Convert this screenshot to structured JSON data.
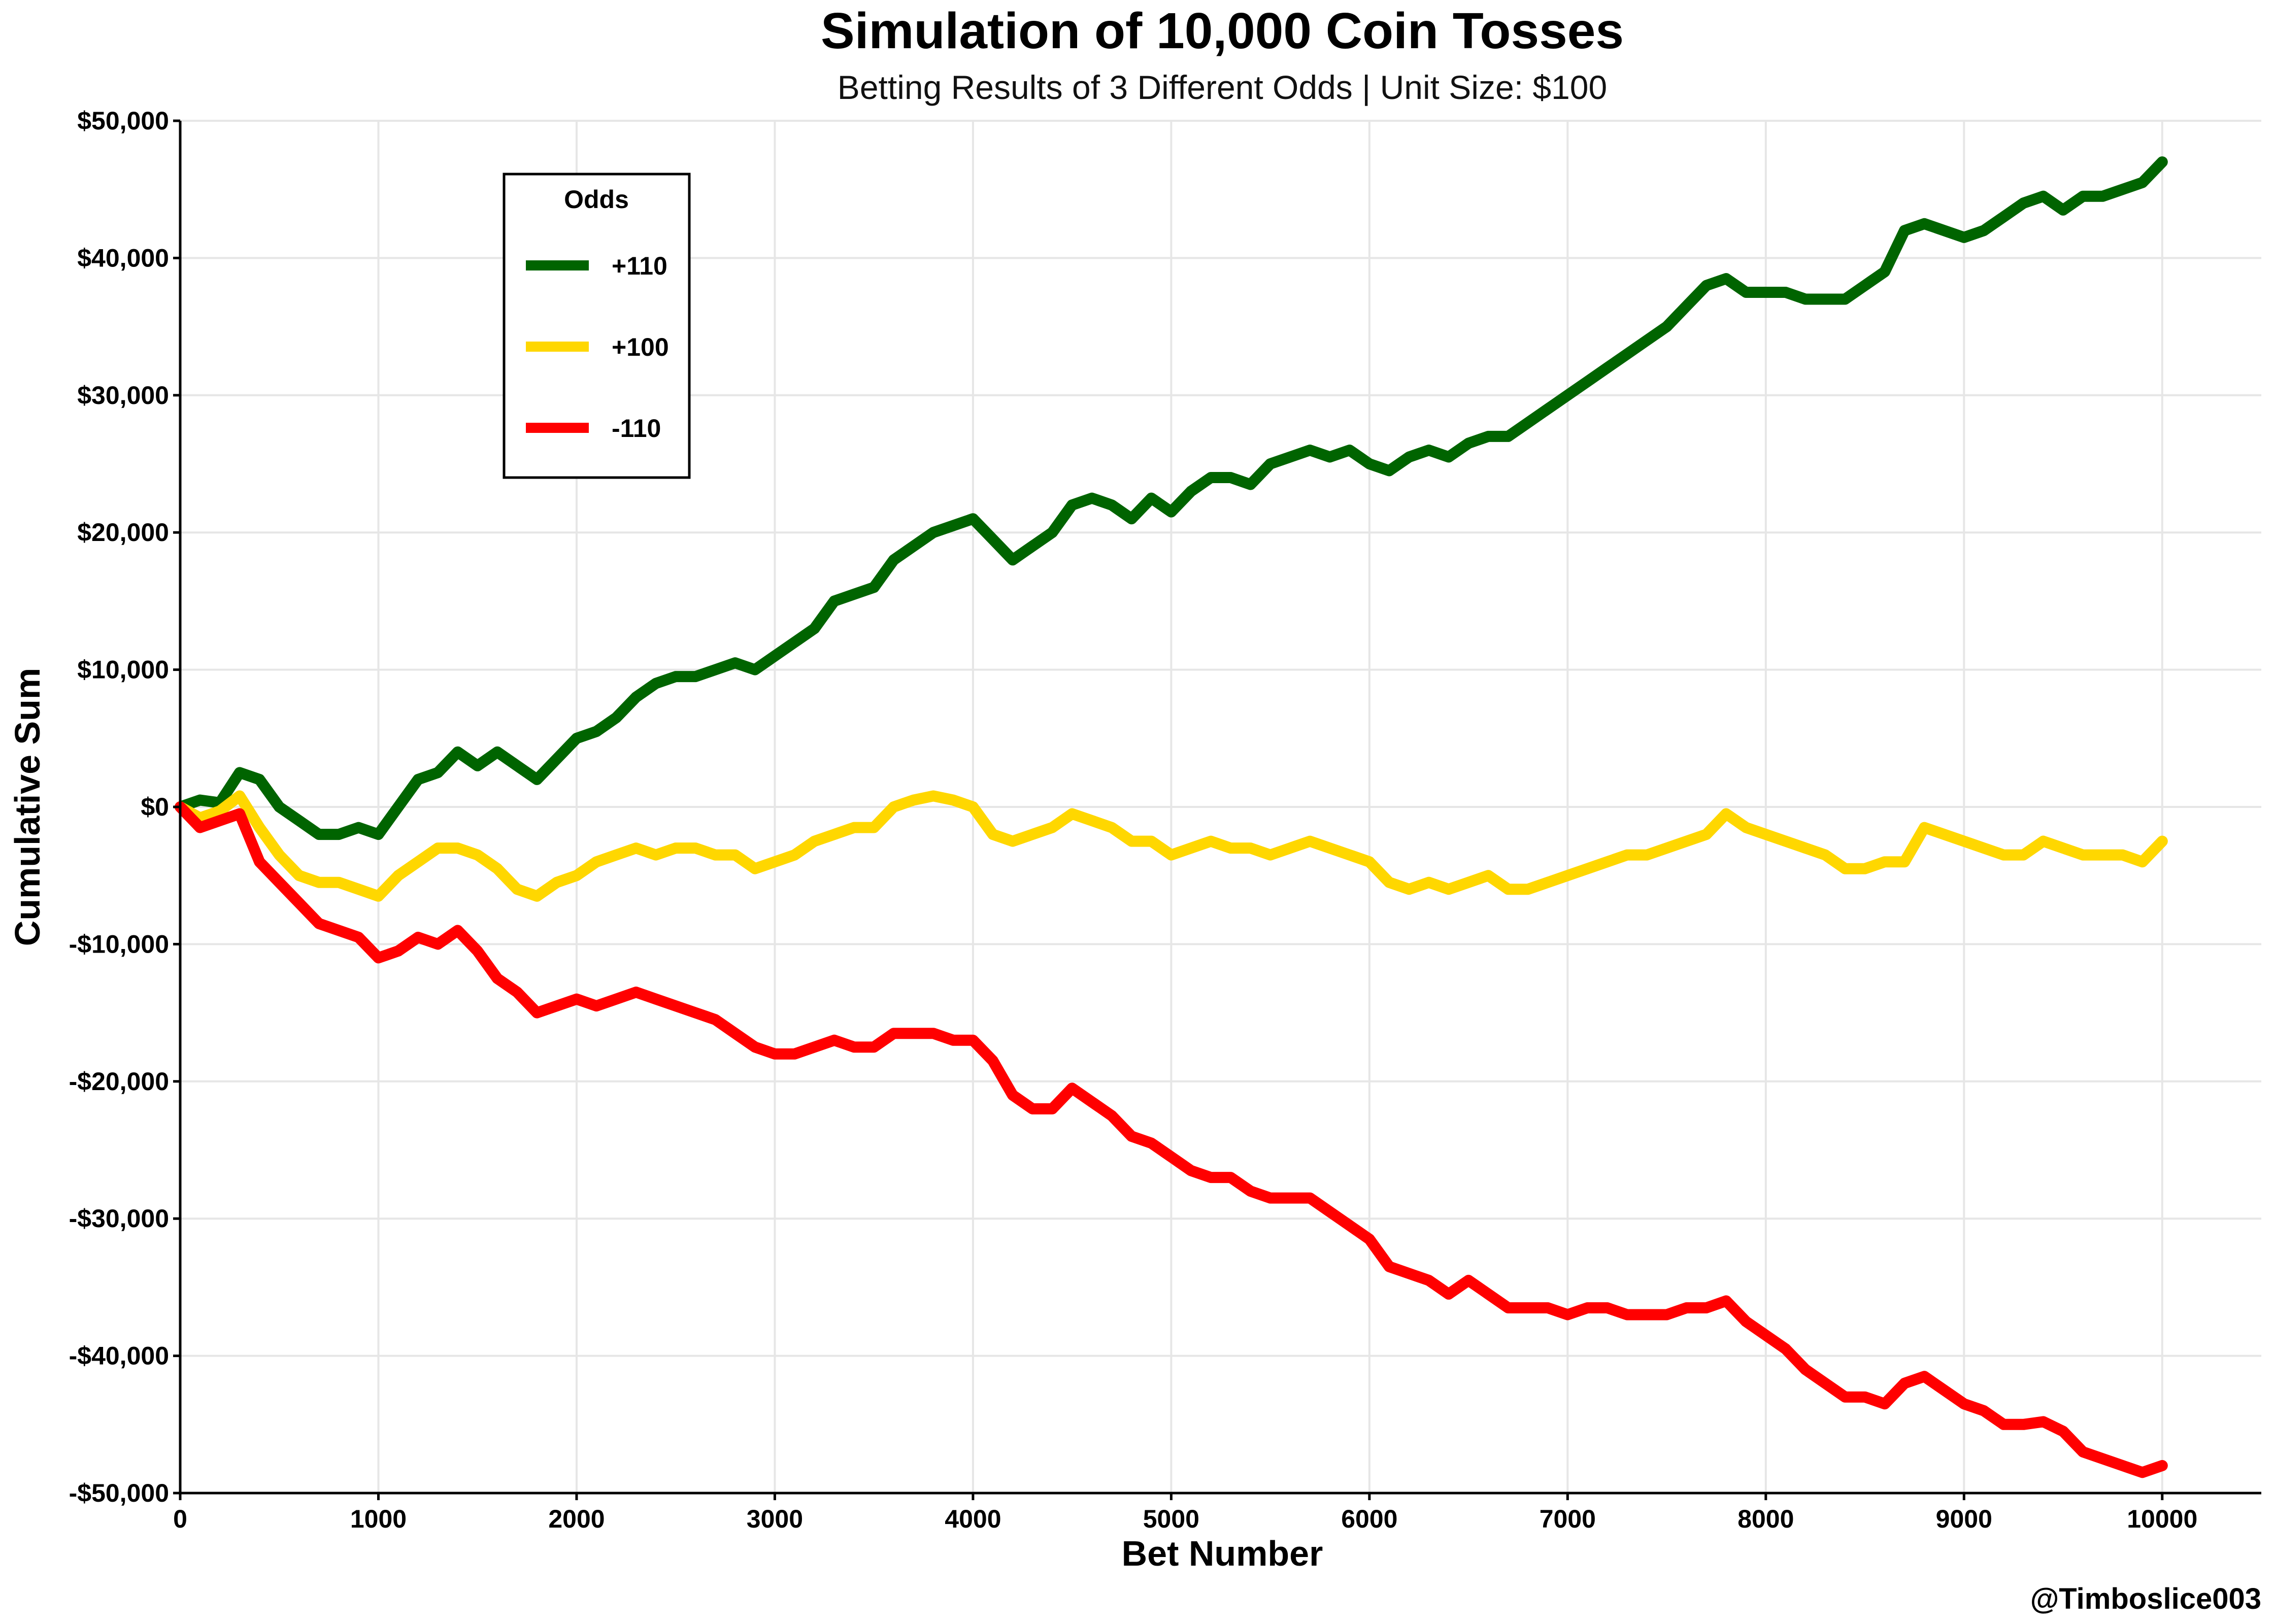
{
  "chart_data": {
    "type": "line",
    "title": "Simulation of 10,000 Coin Tosses",
    "subtitle": "Betting Results of 3 Different Odds | Unit Size: $100",
    "xlabel": "Bet Number",
    "ylabel": "Cumulative Sum",
    "xlim": [
      0,
      10500
    ],
    "ylim": [
      -50000,
      50000
    ],
    "x_ticks": [
      0,
      1000,
      2000,
      3000,
      4000,
      5000,
      6000,
      7000,
      8000,
      9000,
      10000
    ],
    "x_tick_labels": [
      "0",
      "1000",
      "2000",
      "3000",
      "4000",
      "5000",
      "6000",
      "7000",
      "8000",
      "9000",
      "10000"
    ],
    "y_ticks": [
      50000,
      40000,
      30000,
      20000,
      10000,
      0,
      -10000,
      -20000,
      -30000,
      -40000,
      -50000
    ],
    "y_tick_labels": [
      "$50,000",
      "$40,000",
      "$30,000",
      "$20,000",
      "$10,000",
      "$0",
      "-$10,000",
      "-$20,000",
      "-$30,000",
      "-$40,000",
      "-$50,000"
    ],
    "grid": true,
    "legend": {
      "title": "Odds",
      "placement": "upper-left"
    },
    "x": [
      0,
      100,
      200,
      300,
      400,
      500,
      600,
      700,
      800,
      900,
      1000,
      1100,
      1200,
      1300,
      1400,
      1500,
      1600,
      1700,
      1800,
      1900,
      2000,
      2100,
      2200,
      2300,
      2400,
      2500,
      2600,
      2700,
      2800,
      2900,
      3000,
      3100,
      3200,
      3300,
      3400,
      3500,
      3600,
      3700,
      3800,
      3900,
      4000,
      4100,
      4200,
      4300,
      4400,
      4500,
      4600,
      4700,
      4800,
      4900,
      5000,
      5100,
      5200,
      5300,
      5400,
      5500,
      5600,
      5700,
      5800,
      5900,
      6000,
      6100,
      6200,
      6300,
      6400,
      6500,
      6600,
      6700,
      6800,
      6900,
      7000,
      7100,
      7200,
      7300,
      7400,
      7500,
      7600,
      7700,
      7800,
      7900,
      8000,
      8100,
      8200,
      8300,
      8400,
      8500,
      8600,
      8700,
      8800,
      8900,
      9000,
      9100,
      9200,
      9300,
      9400,
      9500,
      9600,
      9700,
      9800,
      9900,
      10000
    ],
    "series": [
      {
        "name": "+110",
        "color": "#006400",
        "values": [
          0,
          500,
          300,
          2500,
          2000,
          0,
          -1000,
          -2000,
          -2000,
          -1500,
          -2000,
          0,
          2000,
          2500,
          4000,
          3000,
          4000,
          3000,
          2000,
          3500,
          5000,
          5500,
          6500,
          8000,
          9000,
          9500,
          9500,
          10000,
          10500,
          10000,
          11000,
          12000,
          13000,
          15000,
          15500,
          16000,
          18000,
          19000,
          20000,
          20500,
          21000,
          19500,
          18000,
          19000,
          20000,
          22000,
          22500,
          22000,
          21000,
          22500,
          21500,
          23000,
          24000,
          24000,
          23500,
          25000,
          25500,
          26000,
          25500,
          26000,
          25000,
          24500,
          25500,
          26000,
          25500,
          26500,
          27000,
          27000,
          28000,
          29000,
          30000,
          31000,
          32000,
          33000,
          34000,
          35000,
          36500,
          38000,
          38500,
          37500,
          37500,
          37500,
          37000,
          37000,
          37000,
          38000,
          39000,
          42000,
          42500,
          42000,
          41500,
          42000,
          43000,
          44000,
          44500,
          43500,
          44500,
          44500,
          45000,
          45500,
          47000
        ]
      },
      {
        "name": "+100",
        "color": "#FFD700",
        "values": [
          0,
          -800,
          -300,
          800,
          -1500,
          -3500,
          -5000,
          -5500,
          -5500,
          -6000,
          -6500,
          -5000,
          -4000,
          -3000,
          -3000,
          -3500,
          -4500,
          -6000,
          -6500,
          -5500,
          -5000,
          -4000,
          -3500,
          -3000,
          -3500,
          -3000,
          -3000,
          -3500,
          -3500,
          -4500,
          -4000,
          -3500,
          -2500,
          -2000,
          -1500,
          -1500,
          0,
          500,
          800,
          500,
          0,
          -2000,
          -2500,
          -2000,
          -1500,
          -500,
          -1000,
          -1500,
          -2500,
          -2500,
          -3500,
          -3000,
          -2500,
          -3000,
          -3000,
          -3500,
          -3000,
          -2500,
          -3000,
          -3500,
          -4000,
          -5500,
          -6000,
          -5500,
          -6000,
          -5500,
          -5000,
          -6000,
          -6000,
          -5500,
          -5000,
          -4500,
          -4000,
          -3500,
          -3500,
          -3000,
          -2500,
          -2000,
          -500,
          -1500,
          -2000,
          -2500,
          -3000,
          -3500,
          -4500,
          -4500,
          -4000,
          -4000,
          -1500,
          -2000,
          -2500,
          -3000,
          -3500,
          -3500,
          -2500,
          -3000,
          -3500,
          -3500,
          -3500,
          -4000,
          -2500
        ]
      },
      {
        "name": "-110",
        "color": "#FF0000",
        "values": [
          0,
          -1500,
          -1000,
          -500,
          -4000,
          -5500,
          -7000,
          -8500,
          -9000,
          -9500,
          -11000,
          -10500,
          -9500,
          -10000,
          -9000,
          -10500,
          -12500,
          -13500,
          -15000,
          -14500,
          -14000,
          -14500,
          -14000,
          -13500,
          -14000,
          -14500,
          -15000,
          -15500,
          -16500,
          -17500,
          -18000,
          -18000,
          -17500,
          -17000,
          -17500,
          -17500,
          -16500,
          -16500,
          -16500,
          -17000,
          -17000,
          -18500,
          -21000,
          -22000,
          -22000,
          -20500,
          -21500,
          -22500,
          -24000,
          -24500,
          -25500,
          -26500,
          -27000,
          -27000,
          -28000,
          -28500,
          -28500,
          -28500,
          -29500,
          -30500,
          -31500,
          -33500,
          -34000,
          -34500,
          -35500,
          -34500,
          -35500,
          -36500,
          -36500,
          -36500,
          -37000,
          -36500,
          -36500,
          -37000,
          -37000,
          -37000,
          -36500,
          -36500,
          -36000,
          -37500,
          -38500,
          -39500,
          -41000,
          -42000,
          -43000,
          -43000,
          -43500,
          -42000,
          -41500,
          -42500,
          -43500,
          -44000,
          -45000,
          -45000,
          -44800,
          -45500,
          -47000,
          -47500,
          -48000,
          -48500,
          -48000
        ]
      }
    ],
    "credit": "@Timboslice003"
  }
}
